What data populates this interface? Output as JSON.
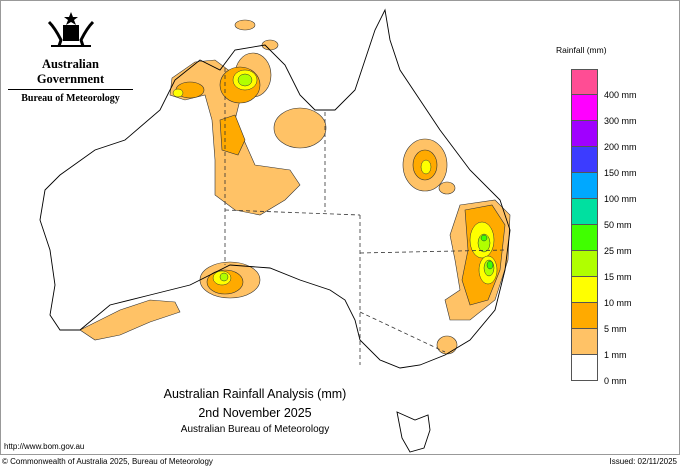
{
  "header": {
    "government": "Australian Government",
    "agency": "Bureau of Meteorology"
  },
  "title": {
    "line1": "Australian Rainfall Analysis (mm)",
    "line2": "2nd November 2025",
    "line3": "Australian Bureau of Meteorology"
  },
  "footer": {
    "url": "http://www.bom.gov.au",
    "copyright": "© Commonwealth of Australia 2025, Bureau of Meteorology",
    "issued": "Issued: 02/11/2025"
  },
  "legend": {
    "title": "Rainfall (mm)",
    "swatches": [
      "#ff4d94",
      "#ff00ff",
      "#a000ff",
      "#3c3cff",
      "#00a8ff",
      "#00e0a0",
      "#40ff00",
      "#b0ff00",
      "#ffff00",
      "#ffaa00",
      "#ffc266",
      "#ffffff"
    ],
    "labels": [
      "400 mm",
      "300 mm",
      "200 mm",
      "150 mm",
      "100 mm",
      "50 mm",
      "25 mm",
      "15 mm",
      "10 mm",
      "5 mm",
      "1 mm",
      "0 mm"
    ]
  },
  "colors": {
    "light": "#ffc266",
    "orange": "#ffaa00",
    "yellow": "#ffff00",
    "lime": "#b0ff00",
    "green": "#40ff00"
  }
}
